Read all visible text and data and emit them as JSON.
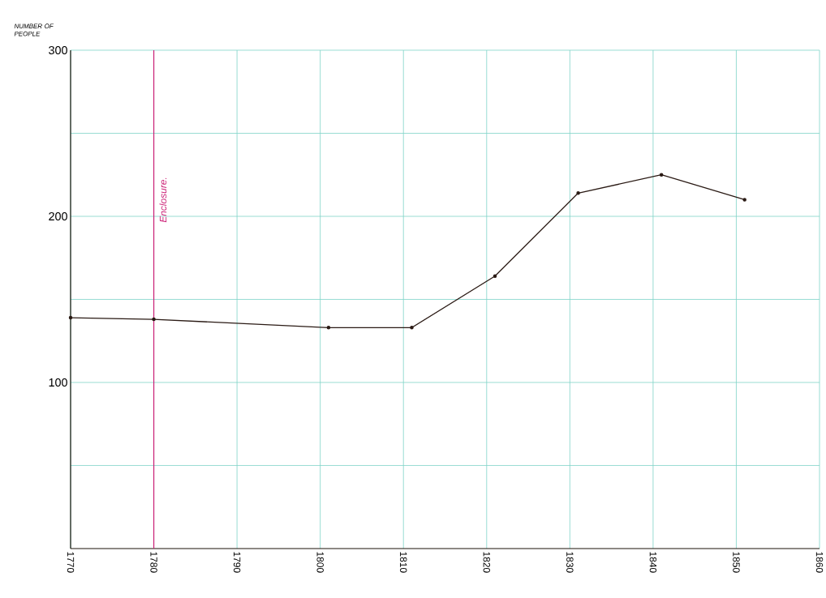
{
  "chart_data": {
    "type": "line",
    "ylabel": "NUMBER OF PEOPLE",
    "x": [
      1770,
      1780,
      1801,
      1811,
      1821,
      1831,
      1841,
      1851
    ],
    "series": [
      {
        "color": "#2a1a14",
        "values": [
          139,
          138,
          133,
          133,
          164,
          214,
          225,
          210
        ]
      }
    ],
    "xlim": [
      1770,
      1860
    ],
    "xticks": [
      1770,
      1780,
      1790,
      1800,
      1810,
      1820,
      1830,
      1840,
      1850,
      1860
    ],
    "ylim": [
      0,
      300
    ],
    "yticks": [
      {
        "value": 50,
        "label": null
      },
      100,
      {
        "value": 150,
        "label": null
      },
      200,
      {
        "value": 250,
        "label": null
      },
      300
    ],
    "ref_lines": [
      {
        "axis": "x",
        "value": 1780,
        "label": "Enclosure.",
        "color": "#cc2277"
      }
    ],
    "grid": true,
    "marker": "circle",
    "line_style": "solid"
  }
}
